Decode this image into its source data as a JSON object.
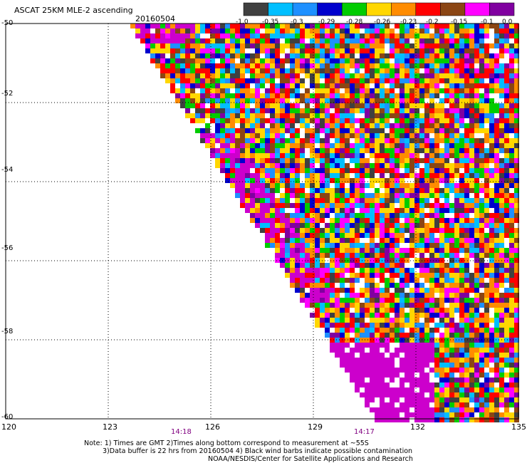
{
  "header": {
    "title": "ASCAT 25KM MLE-2 ascending",
    "date": "20160504"
  },
  "legend": {
    "colors": [
      "#404040",
      "#00bfff",
      "#1e90ff",
      "#0000cd",
      "#00cc00",
      "#ffd700",
      "#ff8c00",
      "#ff0000",
      "#8b4513",
      "#ff00ff",
      "#8000a0"
    ],
    "labels": [
      "-1.0",
      "-0.35",
      "-0.3",
      "-0.29",
      "-0.28",
      "-0.26",
      "-0.23",
      "-0.2",
      "-0.15",
      "-0.1",
      "0.0"
    ]
  },
  "map": {
    "lat_labels": [
      "-50",
      "-52",
      "-54",
      "-56",
      "-58",
      "-60"
    ],
    "lat_values": [
      -50,
      -52,
      -54,
      -56,
      -58,
      -60
    ],
    "lon_labels": [
      "120",
      "123",
      "126",
      "129",
      "132",
      "135"
    ],
    "lon_values": [
      120,
      123,
      126,
      129,
      132,
      135
    ],
    "lon_range": [
      120,
      135
    ],
    "lat_range": [
      -50,
      -60
    ],
    "time_labels": [
      "14:18",
      "14:17"
    ],
    "time_lons": [
      124.8,
      130.4
    ],
    "grid": "dotted"
  },
  "notes": {
    "line1": "Note: 1) Times are GMT 2)Times along bottom correspond to measurement at ~55S",
    "line2": "3)Data buffer is 22 hrs from 20160504 4) Black wind barbs indicate possible contamination",
    "line3": "NOAA/NESDIS/Center for Satellite Applications and Research"
  }
}
